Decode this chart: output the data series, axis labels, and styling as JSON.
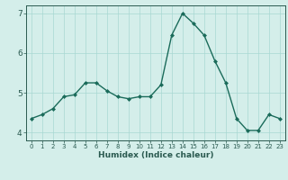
{
  "x_values": [
    0,
    1,
    2,
    3,
    4,
    5,
    6,
    7,
    8,
    9,
    10,
    11,
    12,
    13,
    14,
    15,
    16,
    17,
    18,
    19,
    20,
    21,
    22,
    23
  ],
  "y_values": [
    4.35,
    4.45,
    4.6,
    4.9,
    4.95,
    5.25,
    5.25,
    5.05,
    4.9,
    4.85,
    4.9,
    4.9,
    5.2,
    6.45,
    7.0,
    6.75,
    6.45,
    5.8,
    5.25,
    4.35,
    4.05,
    4.05,
    4.45,
    4.35
  ],
  "line_color": "#1a6b5a",
  "marker": "D",
  "marker_size": 2,
  "bg_color": "#d4eeea",
  "grid_color": "#a8d8d2",
  "axis_color": "#2a5a50",
  "tick_color": "#2a5a50",
  "xlabel": "Humidex (Indice chaleur)",
  "ylim": [
    3.8,
    7.2
  ],
  "xlim": [
    -0.5,
    23.5
  ],
  "yticks": [
    4,
    5,
    6,
    7
  ],
  "xticks": [
    0,
    1,
    2,
    3,
    4,
    5,
    6,
    7,
    8,
    9,
    10,
    11,
    12,
    13,
    14,
    15,
    16,
    17,
    18,
    19,
    20,
    21,
    22,
    23
  ],
  "xlabel_fontsize": 6.5,
  "tick_fontsize_x": 5.0,
  "tick_fontsize_y": 6.5
}
